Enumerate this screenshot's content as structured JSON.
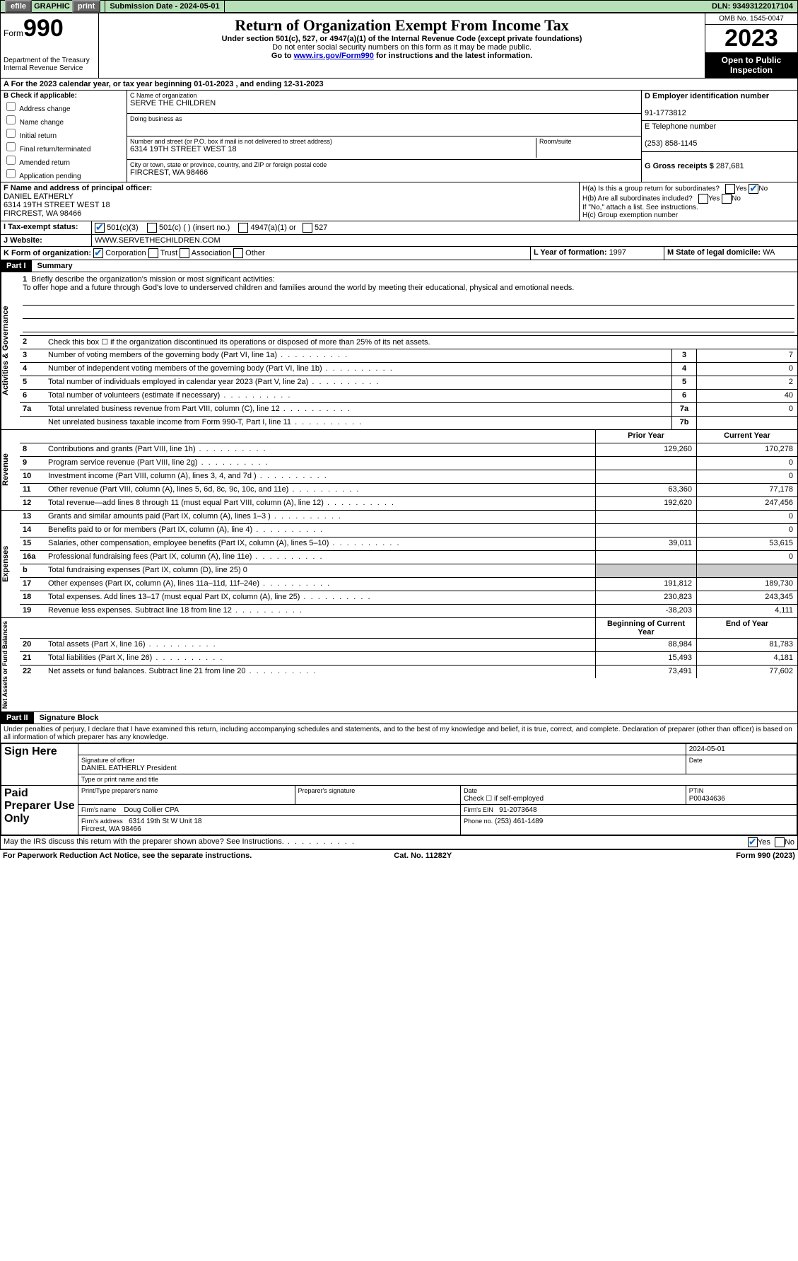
{
  "topbar": {
    "efile_label": "efile GRAPHIC print",
    "submission_label": "Submission Date - 2024-05-01",
    "dln_label": "DLN: 93493122017104"
  },
  "header": {
    "form_label": "Form",
    "form_number": "990",
    "dept": "Department of the Treasury Internal Revenue Service",
    "title": "Return of Organization Exempt From Income Tax",
    "subtitle": "Under section 501(c), 527, or 4947(a)(1) of the Internal Revenue Code (except private foundations)",
    "note1": "Do not enter social security numbers on this form as it may be made public.",
    "note2_prefix": "Go to ",
    "note2_link": "www.irs.gov/Form990",
    "note2_suffix": " for instructions and the latest information.",
    "omb": "OMB No. 1545-0047",
    "year": "2023",
    "inspect": "Open to Public Inspection"
  },
  "rowA": "A For the 2023 calendar year, or tax year beginning 01-01-2023    , and ending 12-31-2023",
  "B": {
    "header": "B Check if applicable:",
    "items": [
      "Address change",
      "Name change",
      "Initial return",
      "Final return/terminated",
      "Amended return",
      "Application pending"
    ]
  },
  "C": {
    "name_label": "C Name of organization",
    "name": "SERVE THE CHILDREN",
    "dba_label": "Doing business as",
    "street_label": "Number and street (or P.O. box if mail is not delivered to street address)",
    "street": "6314 19TH STREET WEST 18",
    "suite_label": "Room/suite",
    "city_label": "City or town, state or province, country, and ZIP or foreign postal code",
    "city": "FIRCREST, WA  98466"
  },
  "D": {
    "label": "D Employer identification number",
    "value": "91-1773812"
  },
  "E": {
    "label": "E Telephone number",
    "value": "(253) 858-1145"
  },
  "G": {
    "label": "G Gross receipts $ ",
    "value": "287,681"
  },
  "F": {
    "label": "F Name and address of principal officer:",
    "name": "DANIEL EATHERLY",
    "addr1": "6314 19TH STREET WEST 18",
    "addr2": "FIRCREST, WA  98466"
  },
  "H": {
    "a": "H(a)  Is this a group return for subordinates?",
    "b": "H(b)  Are all subordinates included?",
    "b_note": "If \"No,\" attach a list. See instructions.",
    "c": "H(c)  Group exemption number"
  },
  "I": {
    "label": "I    Tax-exempt status:",
    "opts": [
      "501(c)(3)",
      "501(c) (  ) (insert no.)",
      "4947(a)(1) or",
      "527"
    ]
  },
  "J": {
    "label": "J   Website:",
    "value": "WWW.SERVETHECHILDREN.COM"
  },
  "K": {
    "label": "K Form of organization:",
    "opts": [
      "Corporation",
      "Trust",
      "Association",
      "Other"
    ]
  },
  "L": {
    "label": "L Year of formation: ",
    "value": "1997"
  },
  "M": {
    "label": "M State of legal domicile: ",
    "value": "WA"
  },
  "partI": {
    "header": "Part I",
    "title": "Summary",
    "line1_label": "Briefly describe the organization's mission or most significant activities:",
    "line1_text": "To offer hope and a future through God's love to underserved children and families around the world by meeting their educational, physical and emotional needs.",
    "line2": "Check this box ☐ if the organization discontinued its operations or disposed of more than 25% of its net assets.",
    "tabs": {
      "gov": "Activities & Governance",
      "rev": "Revenue",
      "exp": "Expenses",
      "net": "Net Assets or Fund Balances"
    },
    "rows_gov": [
      {
        "n": "3",
        "d": "Number of voting members of the governing body (Part VI, line 1a)",
        "b": "3",
        "v": "7"
      },
      {
        "n": "4",
        "d": "Number of independent voting members of the governing body (Part VI, line 1b)",
        "b": "4",
        "v": "0"
      },
      {
        "n": "5",
        "d": "Total number of individuals employed in calendar year 2023 (Part V, line 2a)",
        "b": "5",
        "v": "2"
      },
      {
        "n": "6",
        "d": "Total number of volunteers (estimate if necessary)",
        "b": "6",
        "v": "40"
      },
      {
        "n": "7a",
        "d": "Total unrelated business revenue from Part VIII, column (C), line 12",
        "b": "7a",
        "v": "0"
      },
      {
        "n": "",
        "d": "Net unrelated business taxable income from Form 990-T, Part I, line 11",
        "b": "7b",
        "v": ""
      }
    ],
    "header_prior": "Prior Year",
    "header_current": "Current Year",
    "rows_rev": [
      {
        "n": "8",
        "d": "Contributions and grants (Part VIII, line 1h)",
        "p": "129,260",
        "c": "170,278"
      },
      {
        "n": "9",
        "d": "Program service revenue (Part VIII, line 2g)",
        "p": "",
        "c": "0"
      },
      {
        "n": "10",
        "d": "Investment income (Part VIII, column (A), lines 3, 4, and 7d )",
        "p": "",
        "c": "0"
      },
      {
        "n": "11",
        "d": "Other revenue (Part VIII, column (A), lines 5, 6d, 8c, 9c, 10c, and 11e)",
        "p": "63,360",
        "c": "77,178"
      },
      {
        "n": "12",
        "d": "Total revenue—add lines 8 through 11 (must equal Part VIII, column (A), line 12)",
        "p": "192,620",
        "c": "247,456"
      }
    ],
    "rows_exp": [
      {
        "n": "13",
        "d": "Grants and similar amounts paid (Part IX, column (A), lines 1–3 )",
        "p": "",
        "c": "0"
      },
      {
        "n": "14",
        "d": "Benefits paid to or for members (Part IX, column (A), line 4)",
        "p": "",
        "c": "0"
      },
      {
        "n": "15",
        "d": "Salaries, other compensation, employee benefits (Part IX, column (A), lines 5–10)",
        "p": "39,011",
        "c": "53,615"
      },
      {
        "n": "16a",
        "d": "Professional fundraising fees (Part IX, column (A), line 11e)",
        "p": "",
        "c": "0"
      },
      {
        "n": "b",
        "d": "Total fundraising expenses (Part IX, column (D), line 25) 0",
        "grey": true
      },
      {
        "n": "17",
        "d": "Other expenses (Part IX, column (A), lines 11a–11d, 11f–24e)",
        "p": "191,812",
        "c": "189,730"
      },
      {
        "n": "18",
        "d": "Total expenses. Add lines 13–17 (must equal Part IX, column (A), line 25)",
        "p": "230,823",
        "c": "243,345"
      },
      {
        "n": "19",
        "d": "Revenue less expenses. Subtract line 18 from line 12",
        "p": "-38,203",
        "c": "4,111"
      }
    ],
    "header_begin": "Beginning of Current Year",
    "header_end": "End of Year",
    "rows_net": [
      {
        "n": "20",
        "d": "Total assets (Part X, line 16)",
        "p": "88,984",
        "c": "81,783"
      },
      {
        "n": "21",
        "d": "Total liabilities (Part X, line 26)",
        "p": "15,493",
        "c": "4,181"
      },
      {
        "n": "22",
        "d": "Net assets or fund balances. Subtract line 21 from line 20",
        "p": "73,491",
        "c": "77,602"
      }
    ]
  },
  "partII": {
    "header": "Part II",
    "title": "Signature Block",
    "declaration": "Under penalties of perjury, I declare that I have examined this return, including accompanying schedules and statements, and to the best of my knowledge and belief, it is true, correct, and complete. Declaration of preparer (other than officer) is based on all information of which preparer has any knowledge.",
    "sign_here": "Sign Here",
    "sig_date": "2024-05-01",
    "sig_officer_label": "Signature of officer",
    "sig_name": "DANIEL EATHERLY President",
    "sig_type_label": "Type or print name and title",
    "date_label": "Date",
    "paid_prep": "Paid Preparer Use Only",
    "prep_name_label": "Print/Type preparer's name",
    "prep_sig_label": "Preparer's signature",
    "prep_date_label": "Date",
    "prep_check": "Check ☐ if self-employed",
    "ptin_label": "PTIN",
    "ptin": "P00434636",
    "firm_name_label": "Firm's name",
    "firm_name": "Doug Collier CPA",
    "firm_ein_label": "Firm's EIN",
    "firm_ein": "91-2073648",
    "firm_addr_label": "Firm's address",
    "firm_addr": "6314 19th St W Unit 18\nFircrest, WA  98466",
    "phone_label": "Phone no.",
    "phone": "(253) 461-1489",
    "discuss": "May the IRS discuss this return with the preparer shown above? See Instructions."
  },
  "footer": {
    "left": "For Paperwork Reduction Act Notice, see the separate instructions.",
    "mid": "Cat. No. 11282Y",
    "right": "Form 990 (2023)"
  }
}
